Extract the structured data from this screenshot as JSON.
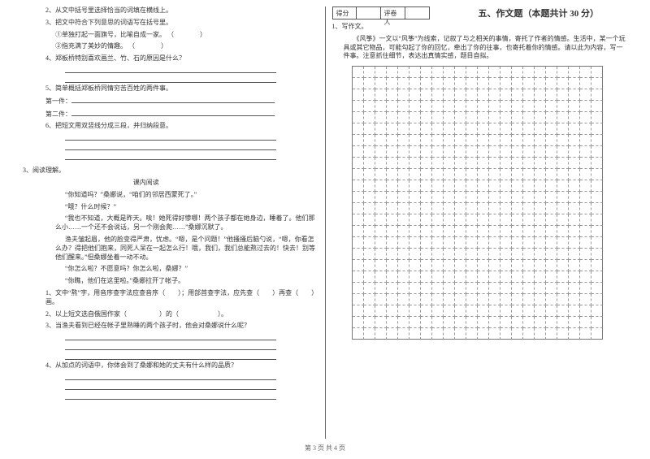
{
  "left": {
    "q2": "2、从文中括号里选择恰当的词填在横线上。",
    "q3": "3、把文中符合下列意思的词语写在括号里。",
    "q3a": "①单独打起一面旗号，比喻自成一家。 （　　　　）",
    "q3b": "②指充满了美妙的情趣。 （　　　　）",
    "q4": "4、郑板桥特别喜欢画兰、竹、石的原因是什么？",
    "q5": "5、简单概括郑板桥同情穷苦百姓的两件事。",
    "q5a": "第一件：",
    "q5b": "第二件：",
    "q6": "6、把短文用双竖线分成三段，并归纳段意。",
    "s3": "3、阅读理解。",
    "s3_title": "课内阅读",
    "p1": "“你知道吗？”桑娜说，“咱们的邻居西蒙死了。”",
    "p2": "“哦？什么时候？”",
    "p3": "“我也不知道，大概是昨天。唉！她死得好惨哪！两个孩子都在她身边，睡着了。他们那么小……一个还不会说话，另一个刚会爬……”桑娜沉默了。",
    "p4": "渔夫皱起眉，他的脸变得严肃，忧虑。“嗯，是个问题！”他搔搔后脑勺说，“嗯，你看怎么办？得把他们抱来，同死人呆在一起怎么行！哦，我们，我们总能熬过去的！快去！别等他们醒来。”但桑娜坐着一动不动。",
    "p5": "“你怎么啦？不愿意吗？你怎么啦，桑娜？”",
    "p6": "“你瞧，他们在这里啦。”桑娜拉开了帐子。",
    "sq1": "1、文中“熬”字，用音序查字法应查音序（　　）；用部首查字法，应先查（　　）再查（　　）画。",
    "sq2": "2、以上短文选自俄国作家（　　　　　）的（　　　　　　）。",
    "sq3": "3、当渔夫看到已经在帐子里熟睡的两个孩子时，他会对桑娜说什么呢？",
    "sq4": "4、从加点的词语中，你体会到了桑娜和她的丈夫有什么样的品质？"
  },
  "right": {
    "score": "得分",
    "grader": "评卷人",
    "title": "五、作文题（本题共计 30 分）",
    "q1": "1、写作文。",
    "intro": "《风筝》一文以“风筝”为线索，记叙了与之相关的事情，寄托了作者的情感。生活中，某一个玩具或其它物品，可能勾起了你的回忆，牵出了你的往事，也寄托着你的情感。请以此为内容，写一件事。注意抓住细节，表达出真情实感，题目自拟。"
  },
  "grid": {
    "cols": 22,
    "rows": 24
  },
  "footer": "第 3 页  共 4 页",
  "colors": {
    "text": "#333333",
    "border": "#777777",
    "dash": "#999999"
  }
}
